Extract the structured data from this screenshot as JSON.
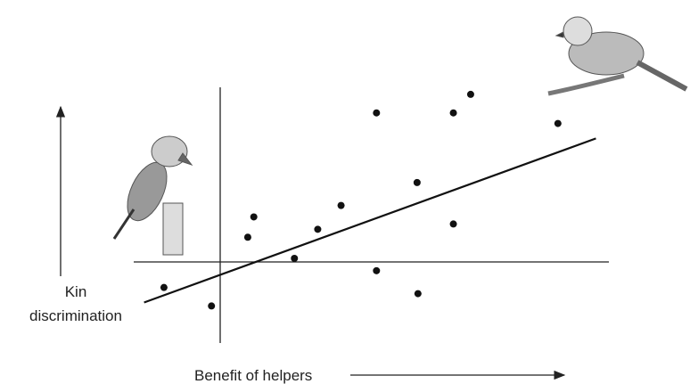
{
  "chart_data": {
    "type": "scatter",
    "x_label": "Benefit of helpers",
    "y_label": "Kin discrimination",
    "x": [
      -6.5,
      -1.0,
      3.2,
      3.9,
      8.6,
      11.3,
      14.0,
      18.1,
      18.1,
      22.8,
      22.9,
      27.0,
      27.0,
      29.0,
      39.1
    ],
    "values": [
      -2.7,
      -4.8,
      3.0,
      5.3,
      0.6,
      3.9,
      6.6,
      17.1,
      -0.8,
      9.2,
      -3.4,
      17.1,
      4.5,
      19.2,
      15.9
    ],
    "color": "#111111",
    "trend": {
      "x": [
        -8.8,
        43.5
      ],
      "y": [
        -4.4,
        14.2
      ]
    },
    "xlim": [
      -10,
      45
    ],
    "ylim": [
      -9,
      20
    ]
  }
}
